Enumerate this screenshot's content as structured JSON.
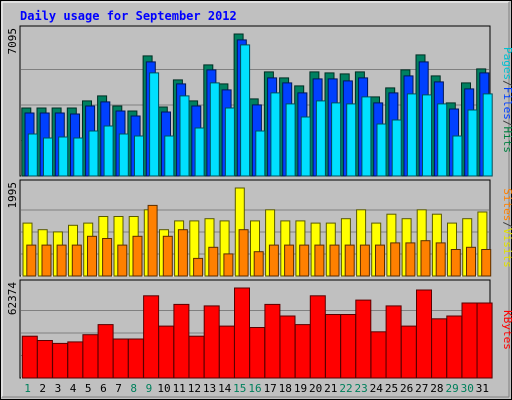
{
  "chart_data": {
    "type": "bar",
    "title": "Daily usage for September 2012",
    "days": [
      "1",
      "2",
      "3",
      "4",
      "5",
      "6",
      "7",
      "8",
      "9",
      "10",
      "11",
      "12",
      "13",
      "14",
      "15",
      "16",
      "17",
      "18",
      "19",
      "20",
      "21",
      "22",
      "23",
      "24",
      "25",
      "26",
      "27",
      "28",
      "29",
      "30",
      "31"
    ],
    "weekend_days": [
      1,
      8,
      9,
      15,
      16,
      22,
      23,
      29,
      30
    ],
    "panels": [
      {
        "id": "hits-files-pages",
        "axis_label": "7095",
        "ymax": 7095,
        "legend": [
          {
            "text": "Pages",
            "color": "#00c0d0"
          },
          {
            "text": "/",
            "color": "#404040"
          },
          {
            "text": "Files",
            "color": "#0040ff"
          },
          {
            "text": "/",
            "color": "#404040"
          },
          {
            "text": "Hits",
            "color": "#008040"
          }
        ],
        "series": [
          {
            "name": "Hits",
            "color": "#008060",
            "values": [
              3400,
              3400,
              3400,
              3400,
              3750,
              4000,
              3500,
              3250,
              6000,
              3450,
              4800,
              3750,
              5550,
              4600,
              7095,
              3850,
              5200,
              4900,
              4500,
              5200,
              5150,
              5100,
              5200,
              3950,
              4400,
              5300,
              6050,
              5000,
              3650,
              4650,
              5350
            ]
          },
          {
            "name": "Files",
            "color": "#0040ff",
            "values": [
              3150,
              3150,
              3150,
              3100,
              3500,
              3700,
              3250,
              3000,
              5700,
              3200,
              4600,
              3500,
              5300,
              4300,
              6800,
              3550,
              4900,
              4650,
              4150,
              4850,
              4850,
              4750,
              4900,
              3650,
              4150,
              5000,
              5700,
              4700,
              3350,
              4350,
              5150
            ]
          },
          {
            "name": "Pages",
            "color": "#00e0ff",
            "values": [
              2100,
              1900,
              1950,
              1900,
              2250,
              2500,
              2100,
              2000,
              5150,
              2000,
              4000,
              2400,
              4650,
              3400,
              6550,
              2250,
              4150,
              3600,
              2950,
              3750,
              3650,
              3600,
              3950,
              2600,
              2800,
              4100,
              4050,
              3600,
              2000,
              3300,
              4100
            ]
          }
        ]
      },
      {
        "id": "visits-sites",
        "axis_label": "1995",
        "ymax": 1995,
        "legend": [
          {
            "text": "Sites",
            "color": "#ff8000"
          },
          {
            "text": "/",
            "color": "#404040"
          },
          {
            "text": "Visits",
            "color": "#e0e000"
          }
        ],
        "series": [
          {
            "name": "Visits",
            "color": "#ffff00",
            "values": [
              1200,
              1050,
              1000,
              1150,
              1200,
              1350,
              1350,
              1350,
              1500,
              1050,
              1250,
              1250,
              1300,
              1250,
              1995,
              1250,
              1500,
              1250,
              1250,
              1200,
              1200,
              1300,
              1500,
              1200,
              1400,
              1300,
              1500,
              1400,
              1200,
              1300,
              1450
            ]
          },
          {
            "name": "Sites",
            "color": "#ff8000",
            "values": [
              700,
              700,
              700,
              700,
              900,
              850,
              700,
              900,
              1600,
              900,
              1050,
              400,
              650,
              500,
              1050,
              550,
              700,
              700,
              700,
              700,
              700,
              700,
              700,
              700,
              750,
              750,
              800,
              750,
              600,
              650,
              600
            ]
          }
        ]
      },
      {
        "id": "kbytes",
        "axis_label": "62374",
        "ymax": 62374,
        "legend": [
          {
            "text": "KBytes",
            "color": "#ff0000"
          }
        ],
        "series": [
          {
            "name": "KBytes",
            "color": "#ff0000",
            "values": [
              29000,
              26000,
              24000,
              25000,
              30000,
              37000,
              27000,
              27000,
              57000,
              36000,
              51000,
              29000,
              50000,
              36000,
              62374,
              35000,
              51000,
              43000,
              37000,
              57000,
              44000,
              44000,
              54000,
              32000,
              50000,
              36000,
              61000,
              41000,
              43000,
              52000,
              52000
            ]
          }
        ]
      }
    ]
  }
}
